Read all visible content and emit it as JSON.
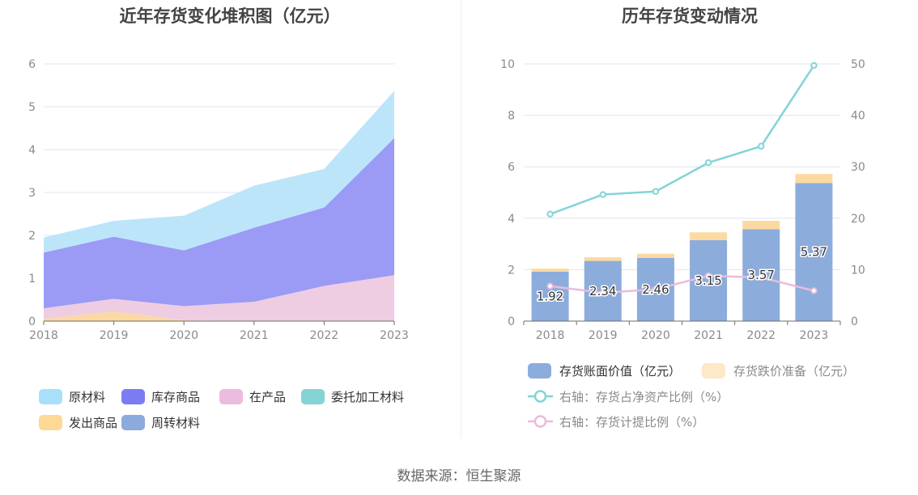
{
  "source_text": "数据来源：恒生聚源",
  "chart_data": [
    {
      "type": "area",
      "stacked": true,
      "title": "近年存货变化堆积图（亿元）",
      "x": [
        "2018",
        "2019",
        "2020",
        "2021",
        "2022",
        "2023"
      ],
      "ylim": [
        0,
        6
      ],
      "yticks": [
        0,
        1,
        2,
        3,
        4,
        5,
        6
      ],
      "grid": true,
      "legend_position": "bottom",
      "series": [
        {
          "name": "发出商品",
          "color": "#fcd9a0",
          "values": [
            0.05,
            0.22,
            0.02,
            0,
            0,
            0
          ]
        },
        {
          "name": "在产品",
          "color": "#eecde3",
          "values": [
            0.25,
            0.3,
            0.33,
            0.45,
            0.82,
            1.07
          ]
        },
        {
          "name": "库存商品",
          "color": "#9b9bf5",
          "values": [
            1.3,
            1.45,
            1.3,
            1.73,
            1.83,
            3.2
          ]
        },
        {
          "name": "原材料",
          "color": "#bde5fa",
          "values": [
            0.35,
            0.37,
            0.81,
            0.98,
            0.9,
            1.1
          ]
        },
        {
          "name": "委托加工材料",
          "color": "#84d4d6",
          "values": [
            0,
            0,
            0,
            0,
            0,
            0
          ]
        },
        {
          "name": "周转材料",
          "color": "#8caadc",
          "values": [
            0,
            0,
            0,
            0,
            0,
            0
          ]
        }
      ],
      "legend": [
        {
          "name": "原材料",
          "color": "#a8e0fb"
        },
        {
          "name": "库存商品",
          "color": "#7b7cf4"
        },
        {
          "name": "在产品",
          "color": "#ebbcdd"
        },
        {
          "name": "委托加工材料",
          "color": "#84d4d6"
        },
        {
          "name": "发出商品",
          "color": "#fdd995"
        },
        {
          "name": "周转材料",
          "color": "#8caadc"
        }
      ]
    },
    {
      "type": "bar+line",
      "stacked": true,
      "title": "历年存货变动情况",
      "x": [
        "2018",
        "2019",
        "2020",
        "2021",
        "2022",
        "2023"
      ],
      "ylim_left": [
        0,
        10
      ],
      "yticks_left": [
        0,
        2,
        4,
        6,
        8,
        10
      ],
      "ylim_right": [
        0,
        50
      ],
      "yticks_right": [
        0,
        10,
        20,
        30,
        40,
        50
      ],
      "grid": true,
      "legend_position": "bottom",
      "bars": [
        {
          "name": "存货账面价值（亿元）",
          "color": "#8cacdc",
          "values": [
            1.92,
            2.34,
            2.46,
            3.15,
            3.57,
            5.37
          ],
          "labels": [
            "1.92",
            "2.34",
            "2.46",
            "3.15",
            "3.57",
            "5.37"
          ]
        },
        {
          "name": "存货跌价准备（亿元）",
          "color": "#fcd9a0",
          "legend_color": "#fde8c8",
          "values": [
            0.12,
            0.14,
            0.16,
            0.3,
            0.33,
            0.35
          ]
        }
      ],
      "lines": [
        {
          "name": "右轴：存货占净资产比例（%）",
          "color": "#84d4d6",
          "axis": "right",
          "values": [
            20.8,
            24.6,
            25.2,
            30.8,
            34.0,
            49.7
          ]
        },
        {
          "name": "右轴：存货计提比例（%）",
          "color": "#e8bcdc",
          "axis": "right",
          "values": [
            6.8,
            5.5,
            6.2,
            8.8,
            8.5,
            5.9
          ]
        }
      ]
    }
  ]
}
